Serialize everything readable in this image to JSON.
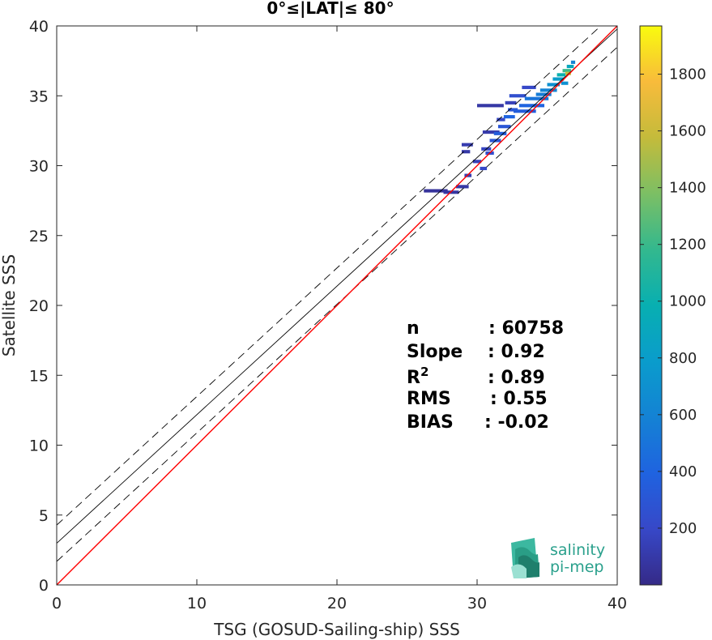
{
  "chart_data": {
    "type": "heatmap",
    "title": "0°≤|LAT|≤ 80°",
    "xlabel": "TSG (GOSUD-Sailing-ship) SSS",
    "ylabel": "Satellite SSS",
    "xlim": [
      0,
      40
    ],
    "ylim": [
      0,
      40
    ],
    "x_ticks": [
      0,
      10,
      20,
      30,
      40
    ],
    "y_ticks": [
      0,
      5,
      10,
      15,
      20,
      25,
      30,
      35,
      40
    ],
    "colorbar": {
      "range": [
        0,
        1970
      ],
      "ticks": [
        200,
        400,
        600,
        800,
        1000,
        1200,
        1400,
        1600,
        1800
      ],
      "colormap": "parula"
    },
    "lines": {
      "identity": {
        "slope": 1,
        "intercept": 0,
        "color": "#ff0000"
      },
      "regression": {
        "slope": 0.92,
        "intercept": 2.98,
        "color": "#000000"
      },
      "upper_bound": {
        "slope": 0.92,
        "intercept": 4.28,
        "color": "#000000",
        "style": "dashed"
      },
      "lower_bound": {
        "slope": 0.92,
        "intercept": 1.68,
        "color": "#000000",
        "style": "dashed"
      }
    },
    "stats": [
      {
        "label": "n",
        "value": ": 60758"
      },
      {
        "label": "Slope",
        "value": ": 0.92"
      },
      {
        "label": "R",
        "sup": "2",
        "value": ": 0.89"
      },
      {
        "label": "RMS",
        "value": ": 0.55"
      },
      {
        "label": "BIAS",
        "value": ": -0.02"
      }
    ],
    "density_cells": [
      {
        "x": 26.2,
        "y": 28.2,
        "w": 1.7,
        "c": 60
      },
      {
        "x": 27.6,
        "y": 28.1,
        "w": 1.1,
        "c": 80
      },
      {
        "x": 28.5,
        "y": 28.5,
        "w": 0.9,
        "c": 90
      },
      {
        "x": 29.1,
        "y": 29.3,
        "w": 0.5,
        "c": 120
      },
      {
        "x": 28.9,
        "y": 31.0,
        "w": 0.6,
        "c": 100
      },
      {
        "x": 28.9,
        "y": 31.5,
        "w": 0.8,
        "c": 120
      },
      {
        "x": 29.7,
        "y": 30.3,
        "w": 0.6,
        "c": 150
      },
      {
        "x": 30.2,
        "y": 29.8,
        "w": 0.5,
        "c": 200
      },
      {
        "x": 30.3,
        "y": 31.2,
        "w": 0.7,
        "c": 180
      },
      {
        "x": 30.6,
        "y": 30.9,
        "w": 0.6,
        "c": 250
      },
      {
        "x": 30.4,
        "y": 32.4,
        "w": 1.2,
        "c": 110
      },
      {
        "x": 30.9,
        "y": 31.8,
        "w": 0.8,
        "c": 300
      },
      {
        "x": 31.2,
        "y": 32.3,
        "w": 0.9,
        "c": 350
      },
      {
        "x": 31.5,
        "y": 32.8,
        "w": 0.9,
        "c": 300
      },
      {
        "x": 31.4,
        "y": 33.3,
        "w": 0.6,
        "c": 200
      },
      {
        "x": 31.9,
        "y": 33.5,
        "w": 0.8,
        "c": 400
      },
      {
        "x": 32.2,
        "y": 34.0,
        "w": 0.7,
        "c": 300
      },
      {
        "x": 32.0,
        "y": 34.5,
        "w": 0.8,
        "c": 150
      },
      {
        "x": 30.0,
        "y": 34.3,
        "w": 1.9,
        "c": 90
      },
      {
        "x": 32.6,
        "y": 33.9,
        "w": 1.6,
        "c": 350
      },
      {
        "x": 33.0,
        "y": 34.3,
        "w": 1.8,
        "c": 400
      },
      {
        "x": 32.3,
        "y": 35.0,
        "w": 1.2,
        "c": 250
      },
      {
        "x": 33.4,
        "y": 34.8,
        "w": 1.7,
        "c": 500
      },
      {
        "x": 34.2,
        "y": 35.1,
        "w": 1.1,
        "c": 550
      },
      {
        "x": 33.2,
        "y": 35.6,
        "w": 1.0,
        "c": 200
      },
      {
        "x": 34.5,
        "y": 35.4,
        "w": 1.2,
        "c": 600
      },
      {
        "x": 35.0,
        "y": 35.8,
        "w": 0.9,
        "c": 700
      },
      {
        "x": 35.4,
        "y": 36.2,
        "w": 0.8,
        "c": 800
      },
      {
        "x": 35.7,
        "y": 36.5,
        "w": 0.6,
        "c": 1000
      },
      {
        "x": 36.1,
        "y": 36.8,
        "w": 0.6,
        "c": 1200
      },
      {
        "x": 36.4,
        "y": 37.1,
        "w": 0.5,
        "c": 900
      },
      {
        "x": 36.7,
        "y": 37.4,
        "w": 0.3,
        "c": 600
      },
      {
        "x": 36.3,
        "y": 36.6,
        "w": 0.4,
        "c": 1600
      },
      {
        "x": 36.0,
        "y": 35.9,
        "w": 0.5,
        "c": 700
      }
    ]
  },
  "logo": {
    "line1": "salinity",
    "line2": "pi-mep"
  }
}
